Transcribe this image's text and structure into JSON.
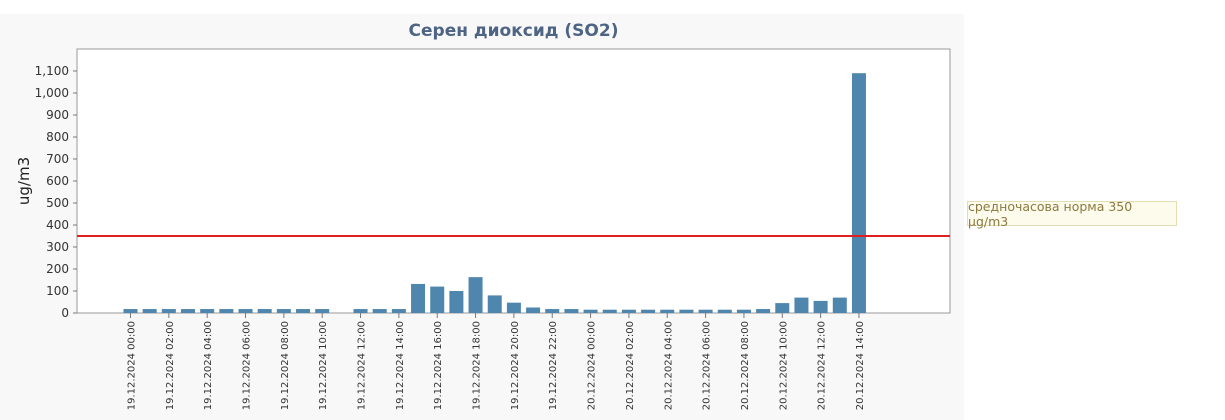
{
  "chart_data": {
    "type": "bar",
    "title": "Серен диоксид (SO2)",
    "ylabel": "ug/m3",
    "xlabel": "",
    "ylim": [
      0,
      1200
    ],
    "yticks": [
      "0",
      "100",
      "200",
      "300",
      "400",
      "500",
      "600",
      "700",
      "800",
      "900",
      "1,000",
      "1,100"
    ],
    "categories": [
      "19.12.2024 00:00",
      "19.12.2024 01:00",
      "19.12.2024 02:00",
      "19.12.2024 03:00",
      "19.12.2024 04:00",
      "19.12.2024 05:00",
      "19.12.2024 06:00",
      "19.12.2024 07:00",
      "19.12.2024 08:00",
      "19.12.2024 09:00",
      "19.12.2024 10:00",
      "19.12.2024 11:00",
      "19.12.2024 12:00",
      "19.12.2024 13:00",
      "19.12.2024 14:00",
      "19.12.2024 15:00",
      "19.12.2024 16:00",
      "19.12.2024 17:00",
      "19.12.2024 18:00",
      "19.12.2024 19:00",
      "19.12.2024 20:00",
      "19.12.2024 21:00",
      "19.12.2024 22:00",
      "19.12.2024 23:00",
      "20.12.2024 00:00",
      "20.12.2024 01:00",
      "20.12.2024 02:00",
      "20.12.2024 03:00",
      "20.12.2024 04:00",
      "20.12.2024 05:00",
      "20.12.2024 06:00",
      "20.12.2024 07:00",
      "20.12.2024 08:00",
      "20.12.2024 09:00",
      "20.12.2024 10:00",
      "20.12.2024 11:00",
      "20.12.2024 12:00",
      "20.12.2024 13:00",
      "20.12.2024 14:00"
    ],
    "tick_labels": [
      "19.12.2024 00:00",
      "19.12.2024 02:00",
      "19.12.2024 04:00",
      "19.12.2024 06:00",
      "19.12.2024 08:00",
      "19.12.2024 10:00",
      "19.12.2024 12:00",
      "19.12.2024 14:00",
      "19.12.2024 16:00",
      "19.12.2024 18:00",
      "19.12.2024 20:00",
      "19.12.2024 22:00",
      "20.12.2024 00:00",
      "20.12.2024 02:00",
      "20.12.2024 04:00",
      "20.12.2024 06:00",
      "20.12.2024 08:00",
      "20.12.2024 10:00",
      "20.12.2024 12:00",
      "20.12.2024 14:00"
    ],
    "values": [
      18,
      18,
      18,
      18,
      18,
      18,
      18,
      18,
      18,
      18,
      18,
      null,
      18,
      18,
      18,
      132,
      120,
      100,
      163,
      80,
      47,
      25,
      18,
      18,
      15,
      15,
      15,
      15,
      15,
      15,
      15,
      15,
      15,
      18,
      45,
      70,
      55,
      70,
      1090
    ],
    "threshold": {
      "value": 350,
      "label": "средночасова норма 350 µg/m3"
    },
    "bar_color": "#4f86ae",
    "threshold_color": "#e02020",
    "grid": false,
    "legend": "right"
  }
}
